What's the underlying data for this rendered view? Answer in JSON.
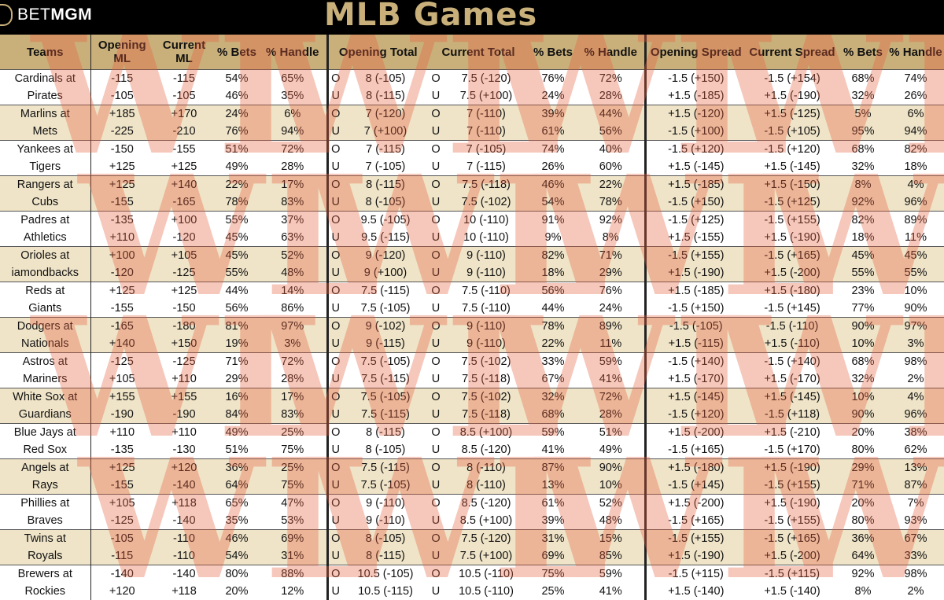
{
  "header": {
    "logo_text_light": "BET",
    "logo_text_bold": "MGM",
    "title": "MLB Games"
  },
  "columns": {
    "teams": "Teams",
    "opening_ml": "Opening ML",
    "current_ml": "Current ML",
    "ml_bets": "% Bets",
    "ml_handle": "% Handle",
    "opening_total": "Opening Total",
    "current_total": "Current Total",
    "total_bets": "% Bets",
    "total_handle": "% Handle",
    "opening_spread": "Opening Spread",
    "current_spread": "Current Spread",
    "spread_bets": "% Bets",
    "spread_handle": "% Handle"
  },
  "watermark_text": "WL",
  "games": [
    {
      "team1": "Cardinals at",
      "team2": "Pirates",
      "oml": [
        "-115",
        "-105"
      ],
      "cml": [
        "-115",
        "-105"
      ],
      "mb": [
        "54%",
        "46%"
      ],
      "mh": [
        "65%",
        "35%"
      ],
      "otl": [
        "O",
        "U"
      ],
      "ot": [
        "8 (-105)",
        "8 (-115)"
      ],
      "ctl": [
        "O",
        "U"
      ],
      "ct": [
        "7.5 (-120)",
        "7.5 (+100)"
      ],
      "tb": [
        "76%",
        "24%"
      ],
      "th": [
        "72%",
        "28%"
      ],
      "os": [
        "-1.5 (+150)",
        "+1.5 (-185)"
      ],
      "cs": [
        "-1.5 (+154)",
        "+1.5 (-190)"
      ],
      "sb": [
        "68%",
        "32%"
      ],
      "sh": [
        "74%",
        "26%"
      ]
    },
    {
      "team1": "Marlins at",
      "team2": "Mets",
      "oml": [
        "+185",
        "-225"
      ],
      "cml": [
        "+170",
        "-210"
      ],
      "mb": [
        "24%",
        "76%"
      ],
      "mh": [
        "6%",
        "94%"
      ],
      "otl": [
        "O",
        "U"
      ],
      "ot": [
        "7 (-120)",
        "7 (+100)"
      ],
      "ctl": [
        "O",
        "U"
      ],
      "ct": [
        "7 (-110)",
        "7 (-110)"
      ],
      "tb": [
        "39%",
        "61%"
      ],
      "th": [
        "44%",
        "56%"
      ],
      "os": [
        "+1.5 (-120)",
        "-1.5 (+100)"
      ],
      "cs": [
        "+1.5 (-125)",
        "-1.5 (+105)"
      ],
      "sb": [
        "5%",
        "95%"
      ],
      "sh": [
        "6%",
        "94%"
      ]
    },
    {
      "team1": "Yankees at",
      "team2": "Tigers",
      "oml": [
        "-150",
        "+125"
      ],
      "cml": [
        "-155",
        "+125"
      ],
      "mb": [
        "51%",
        "49%"
      ],
      "mh": [
        "72%",
        "28%"
      ],
      "otl": [
        "O",
        "U"
      ],
      "ot": [
        "7 (-115)",
        "7 (-105)"
      ],
      "ctl": [
        "O",
        "U"
      ],
      "ct": [
        "7 (-105)",
        "7 (-115)"
      ],
      "tb": [
        "74%",
        "26%"
      ],
      "th": [
        "40%",
        "60%"
      ],
      "os": [
        "-1.5 (+120)",
        "+1.5 (-145)"
      ],
      "cs": [
        "-1.5 (+120)",
        "+1.5 (-145)"
      ],
      "sb": [
        "68%",
        "32%"
      ],
      "sh": [
        "82%",
        "18%"
      ]
    },
    {
      "team1": "Rangers at",
      "team2": "Cubs",
      "oml": [
        "+125",
        "-155"
      ],
      "cml": [
        "+140",
        "-165"
      ],
      "mb": [
        "22%",
        "78%"
      ],
      "mh": [
        "17%",
        "83%"
      ],
      "otl": [
        "O",
        "U"
      ],
      "ot": [
        "8 (-115)",
        "8 (-105)"
      ],
      "ctl": [
        "O",
        "U"
      ],
      "ct": [
        "7.5 (-118)",
        "7.5 (-102)"
      ],
      "tb": [
        "46%",
        "54%"
      ],
      "th": [
        "22%",
        "78%"
      ],
      "os": [
        "+1.5 (-185)",
        "-1.5 (+150)"
      ],
      "cs": [
        "+1.5 (-150)",
        "-1.5 (+125)"
      ],
      "sb": [
        "8%",
        "92%"
      ],
      "sh": [
        "4%",
        "96%"
      ]
    },
    {
      "team1": "Padres at",
      "team2": "Athletics",
      "oml": [
        "-135",
        "+110"
      ],
      "cml": [
        "+100",
        "-120"
      ],
      "mb": [
        "55%",
        "45%"
      ],
      "mh": [
        "37%",
        "63%"
      ],
      "otl": [
        "O",
        "U"
      ],
      "ot": [
        "9.5 (-105)",
        "9.5 (-115)"
      ],
      "ctl": [
        "O",
        "U"
      ],
      "ct": [
        "10 (-110)",
        "10 (-110)"
      ],
      "tb": [
        "91%",
        "9%"
      ],
      "th": [
        "92%",
        "8%"
      ],
      "os": [
        "-1.5 (+125)",
        "+1.5 (-155)"
      ],
      "cs": [
        "-1.5 (+155)",
        "+1.5 (-190)"
      ],
      "sb": [
        "82%",
        "18%"
      ],
      "sh": [
        "89%",
        "11%"
      ]
    },
    {
      "team1": "Orioles at",
      "team2": "iamondbacks",
      "oml": [
        "+100",
        "-120"
      ],
      "cml": [
        "+105",
        "-125"
      ],
      "mb": [
        "45%",
        "55%"
      ],
      "mh": [
        "52%",
        "48%"
      ],
      "otl": [
        "O",
        "U"
      ],
      "ot": [
        "9 (-120)",
        "9 (+100)"
      ],
      "ctl": [
        "O",
        "U"
      ],
      "ct": [
        "9 (-110)",
        "9 (-110)"
      ],
      "tb": [
        "82%",
        "18%"
      ],
      "th": [
        "71%",
        "29%"
      ],
      "os": [
        "-1.5 (+155)",
        "+1.5 (-190)"
      ],
      "cs": [
        "-1.5 (+165)",
        "+1.5 (-200)"
      ],
      "sb": [
        "45%",
        "55%"
      ],
      "sh": [
        "45%",
        "55%"
      ]
    },
    {
      "team1": "Reds at",
      "team2": "Giants",
      "oml": [
        "+125",
        "-155"
      ],
      "cml": [
        "+125",
        "-150"
      ],
      "mb": [
        "44%",
        "56%"
      ],
      "mh": [
        "14%",
        "86%"
      ],
      "otl": [
        "O",
        "U"
      ],
      "ot": [
        "7.5 (-115)",
        "7.5 (-105)"
      ],
      "ctl": [
        "O",
        "U"
      ],
      "ct": [
        "7.5 (-110)",
        "7.5 (-110)"
      ],
      "tb": [
        "56%",
        "44%"
      ],
      "th": [
        "76%",
        "24%"
      ],
      "os": [
        "+1.5 (-185)",
        "-1.5 (+150)"
      ],
      "cs": [
        "+1.5 (-180)",
        "-1.5 (+145)"
      ],
      "sb": [
        "23%",
        "77%"
      ],
      "sh": [
        "10%",
        "90%"
      ]
    },
    {
      "team1": "Dodgers at",
      "team2": "Nationals",
      "oml": [
        "-165",
        "+140"
      ],
      "cml": [
        "-180",
        "+150"
      ],
      "mb": [
        "81%",
        "19%"
      ],
      "mh": [
        "97%",
        "3%"
      ],
      "otl": [
        "O",
        "U"
      ],
      "ot": [
        "9 (-102)",
        "9 (-115)"
      ],
      "ctl": [
        "O",
        "U"
      ],
      "ct": [
        "9 (-110)",
        "9 (-110)"
      ],
      "tb": [
        "78%",
        "22%"
      ],
      "th": [
        "89%",
        "11%"
      ],
      "os": [
        "-1.5 (-105)",
        "+1.5 (-115)"
      ],
      "cs": [
        "-1.5 (-110)",
        "+1.5 (-110)"
      ],
      "sb": [
        "90%",
        "10%"
      ],
      "sh": [
        "97%",
        "3%"
      ]
    },
    {
      "team1": "Astros at",
      "team2": "Mariners",
      "oml": [
        "-125",
        "+105"
      ],
      "cml": [
        "-125",
        "+110"
      ],
      "mb": [
        "71%",
        "29%"
      ],
      "mh": [
        "72%",
        "28%"
      ],
      "otl": [
        "O",
        "U"
      ],
      "ot": [
        "7.5 (-105)",
        "7.5 (-115)"
      ],
      "ctl": [
        "O",
        "U"
      ],
      "ct": [
        "7.5 (-102)",
        "7.5 (-118)"
      ],
      "tb": [
        "33%",
        "67%"
      ],
      "th": [
        "59%",
        "41%"
      ],
      "os": [
        "-1.5 (+140)",
        "+1.5 (-170)"
      ],
      "cs": [
        "-1.5 (+140)",
        "+1.5 (-170)"
      ],
      "sb": [
        "68%",
        "32%"
      ],
      "sh": [
        "98%",
        "2%"
      ]
    },
    {
      "team1": "White Sox at",
      "team2": "Guardians",
      "oml": [
        "+155",
        "-190"
      ],
      "cml": [
        "+155",
        "-190"
      ],
      "mb": [
        "16%",
        "84%"
      ],
      "mh": [
        "17%",
        "83%"
      ],
      "otl": [
        "O",
        "U"
      ],
      "ot": [
        "7.5 (-105)",
        "7.5 (-115)"
      ],
      "ctl": [
        "O",
        "U"
      ],
      "ct": [
        "7.5 (-102)",
        "7.5 (-118)"
      ],
      "tb": [
        "32%",
        "68%"
      ],
      "th": [
        "72%",
        "28%"
      ],
      "os": [
        "+1.5 (-145)",
        "-1.5 (+120)"
      ],
      "cs": [
        "+1.5 (-145)",
        "-1.5 (+118)"
      ],
      "sb": [
        "10%",
        "90%"
      ],
      "sh": [
        "4%",
        "96%"
      ]
    },
    {
      "team1": "Blue Jays at",
      "team2": "Red Sox",
      "oml": [
        "+110",
        "-135"
      ],
      "cml": [
        "+110",
        "-130"
      ],
      "mb": [
        "49%",
        "51%"
      ],
      "mh": [
        "25%",
        "75%"
      ],
      "otl": [
        "O",
        "U"
      ],
      "ot": [
        "8 (-115)",
        "8 (-105)"
      ],
      "ctl": [
        "O",
        "U"
      ],
      "ct": [
        "8.5 (+100)",
        "8.5 (-120)"
      ],
      "tb": [
        "59%",
        "41%"
      ],
      "th": [
        "51%",
        "49%"
      ],
      "os": [
        "+1.5 (-200)",
        "-1.5 (+165)"
      ],
      "cs": [
        "+1.5 (-210)",
        "-1.5 (+170)"
      ],
      "sb": [
        "20%",
        "80%"
      ],
      "sh": [
        "38%",
        "62%"
      ]
    },
    {
      "team1": "Angels at",
      "team2": "Rays",
      "oml": [
        "+125",
        "-155"
      ],
      "cml": [
        "+120",
        "-140"
      ],
      "mb": [
        "36%",
        "64%"
      ],
      "mh": [
        "25%",
        "75%"
      ],
      "otl": [
        "O",
        "U"
      ],
      "ot": [
        "7.5 (-115)",
        "7.5 (-105)"
      ],
      "ctl": [
        "O",
        "U"
      ],
      "ct": [
        "8 (-110)",
        "8 (-110)"
      ],
      "tb": [
        "87%",
        "13%"
      ],
      "th": [
        "90%",
        "10%"
      ],
      "os": [
        "+1.5 (-180)",
        "-1.5 (+145)"
      ],
      "cs": [
        "+1.5 (-190)",
        "-1.5 (+155)"
      ],
      "sb": [
        "29%",
        "71%"
      ],
      "sh": [
        "13%",
        "87%"
      ]
    },
    {
      "team1": "Phillies at",
      "team2": "Braves",
      "oml": [
        "+105",
        "-125"
      ],
      "cml": [
        "+118",
        "-140"
      ],
      "mb": [
        "65%",
        "35%"
      ],
      "mh": [
        "47%",
        "53%"
      ],
      "otl": [
        "O",
        "U"
      ],
      "ot": [
        "9 (-110)",
        "9 (-110)"
      ],
      "ctl": [
        "O",
        "U"
      ],
      "ct": [
        "8.5 (-120)",
        "8.5 (+100)"
      ],
      "tb": [
        "61%",
        "39%"
      ],
      "th": [
        "52%",
        "48%"
      ],
      "os": [
        "+1.5 (-200)",
        "-1.5 (+165)"
      ],
      "cs": [
        "+1.5 (-190)",
        "-1.5 (+155)"
      ],
      "sb": [
        "20%",
        "80%"
      ],
      "sh": [
        "7%",
        "93%"
      ]
    },
    {
      "team1": "Twins at",
      "team2": "Royals",
      "oml": [
        "-105",
        "-115"
      ],
      "cml": [
        "-110",
        "-110"
      ],
      "mb": [
        "46%",
        "54%"
      ],
      "mh": [
        "69%",
        "31%"
      ],
      "otl": [
        "O",
        "U"
      ],
      "ot": [
        "8 (-105)",
        "8 (-115)"
      ],
      "ctl": [
        "O",
        "U"
      ],
      "ct": [
        "7.5 (-120)",
        "7.5 (+100)"
      ],
      "tb": [
        "31%",
        "69%"
      ],
      "th": [
        "15%",
        "85%"
      ],
      "os": [
        "-1.5 (+155)",
        "+1.5 (-190)"
      ],
      "cs": [
        "-1.5 (+165)",
        "+1.5 (-200)"
      ],
      "sb": [
        "36%",
        "64%"
      ],
      "sh": [
        "67%",
        "33%"
      ]
    },
    {
      "team1": "Brewers at",
      "team2": "Rockies",
      "oml": [
        "-140",
        "+120"
      ],
      "cml": [
        "-140",
        "+118"
      ],
      "mb": [
        "80%",
        "20%"
      ],
      "mh": [
        "88%",
        "12%"
      ],
      "otl": [
        "O",
        "U"
      ],
      "ot": [
        "10.5 (-105)",
        "10.5 (-115)"
      ],
      "ctl": [
        "O",
        "U"
      ],
      "ct": [
        "10.5 (-110)",
        "10.5 (-110)"
      ],
      "tb": [
        "75%",
        "25%"
      ],
      "th": [
        "59%",
        "41%"
      ],
      "os": [
        "-1.5 (+115)",
        "+1.5 (-140)"
      ],
      "cs": [
        "-1.5 (+115)",
        "+1.5 (-140)"
      ],
      "sb": [
        "92%",
        "8%"
      ],
      "sh": [
        "98%",
        "2%"
      ]
    }
  ]
}
